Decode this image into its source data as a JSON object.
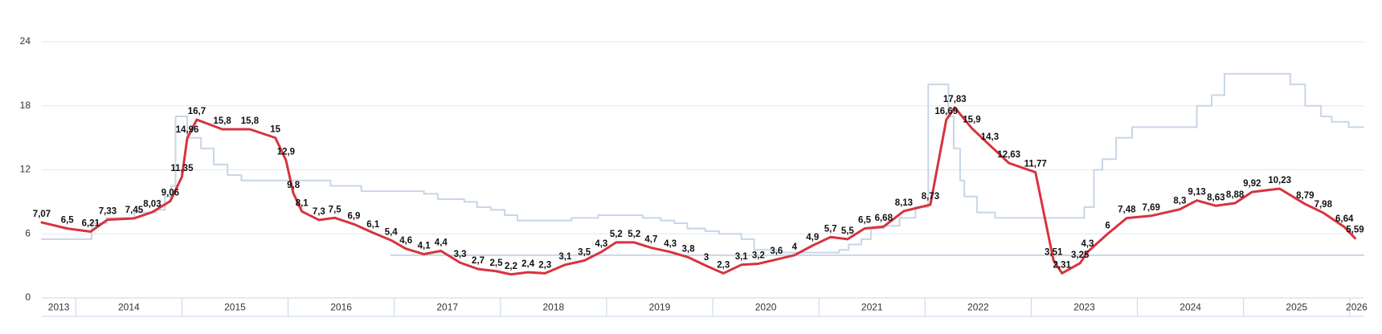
{
  "chart_data": {
    "type": "line",
    "xlim": [
      2013.68,
      2026.13
    ],
    "xticks": [
      2013,
      2014,
      2015,
      2016,
      2017,
      2018,
      2019,
      2020,
      2021,
      2022,
      2023,
      2024,
      2025,
      2026
    ],
    "ylim": [
      0,
      24
    ],
    "yticks": [
      0,
      6,
      12,
      18,
      24
    ],
    "grid": true,
    "series": [
      {
        "color": "#d7333f",
        "step": false,
        "labels": true,
        "x": [
          2013.68,
          2013.92,
          2014.14,
          2014.3,
          2014.55,
          2014.72,
          2014.89,
          2015.0,
          2015.05,
          2015.14,
          2015.38,
          2015.64,
          2015.88,
          2015.98,
          2016.05,
          2016.13,
          2016.29,
          2016.44,
          2016.62,
          2016.8,
          2016.97,
          2017.11,
          2017.28,
          2017.44,
          2017.62,
          2017.79,
          2017.96,
          2018.1,
          2018.26,
          2018.42,
          2018.61,
          2018.79,
          2018.95,
          2019.09,
          2019.26,
          2019.42,
          2019.6,
          2019.77,
          2019.94,
          2020.1,
          2020.27,
          2020.43,
          2020.6,
          2020.77,
          2020.94,
          2021.11,
          2021.27,
          2021.43,
          2021.61,
          2021.8,
          2022.05,
          2022.2,
          2022.28,
          2022.44,
          2022.61,
          2022.79,
          2023.04,
          2023.21,
          2023.29,
          2023.46,
          2023.53,
          2023.72,
          2023.9,
          2024.13,
          2024.4,
          2024.56,
          2024.74,
          2024.92,
          2025.08,
          2025.34,
          2025.58,
          2025.75,
          2025.95,
          2026.05
        ],
        "values": [
          7.07,
          6.5,
          6.21,
          7.33,
          7.45,
          8.03,
          9.06,
          11.35,
          14.96,
          16.7,
          15.8,
          15.8,
          15,
          12.9,
          9.8,
          8.1,
          7.3,
          7.5,
          6.9,
          6.1,
          5.4,
          4.6,
          4.1,
          4.4,
          3.3,
          2.7,
          2.5,
          2.2,
          2.4,
          2.3,
          3.1,
          3.5,
          4.3,
          5.2,
          5.2,
          4.7,
          4.3,
          3.8,
          3,
          2.3,
          3.1,
          3.2,
          3.6,
          4,
          4.9,
          5.7,
          5.5,
          6.5,
          6.68,
          8.13,
          8.73,
          16.69,
          17.83,
          15.9,
          14.3,
          12.63,
          11.77,
          3.51,
          2.31,
          3.25,
          4.3,
          6,
          7.48,
          7.69,
          8.3,
          9.13,
          8.63,
          8.88,
          9.92,
          10.23,
          8.79,
          7.98,
          6.64,
          5.59
        ],
        "value_labels": [
          "7,07",
          "6,5",
          "6,21",
          "7,33",
          "7,45",
          "8,03",
          "9,06",
          "11,35",
          "14,96",
          "16,7",
          "15,8",
          "15,8",
          "15",
          "12,9",
          "9,8",
          "8,1",
          "7,3",
          "7,5",
          "6,9",
          "6,1",
          "5,4",
          "4,6",
          "4,1",
          "4,4",
          "3,3",
          "2,7",
          "2,5",
          "2,2",
          "2,4",
          "2,3",
          "3,1",
          "3,5",
          "4,3",
          "5,2",
          "5,2",
          "4,7",
          "4,3",
          "3,8",
          "3",
          "2,3",
          "3,1",
          "3,2",
          "3,6",
          "4",
          "4,9",
          "5,7",
          "5,5",
          "6,5",
          "6,68",
          "8,13",
          "8,73",
          "16,69",
          "17,83",
          "15,9",
          "14,3",
          "12,63",
          "11,77",
          "3,51",
          "2,31",
          "3,25",
          "4,3",
          "6",
          "7,48",
          "7,69",
          "8,3",
          "9,13",
          "8,63",
          "8,88",
          "9,92",
          "10,23",
          "8,79",
          "7,98",
          "6,64",
          "5,59"
        ]
      },
      {
        "color": "#c8d5e8",
        "step": true,
        "labels": false,
        "x": [
          2013.68,
          2014.15,
          2014.29,
          2014.55,
          2014.76,
          2014.84,
          2014.9,
          2014.94,
          2015.05,
          2015.18,
          2015.3,
          2015.43,
          2015.56,
          2016.4,
          2016.69,
          2017.28,
          2017.41,
          2017.66,
          2017.78,
          2017.91,
          2018.04,
          2018.16,
          2018.67,
          2018.92,
          2019.34,
          2019.51,
          2019.64,
          2019.76,
          2019.93,
          2020.06,
          2020.27,
          2020.39,
          2020.6,
          2021.19,
          2021.28,
          2021.4,
          2021.49,
          2021.61,
          2021.76,
          2021.91,
          2022.03,
          2022.22,
          2022.27,
          2022.33,
          2022.37,
          2022.49,
          2022.66,
          2023.5,
          2023.59,
          2023.67,
          2023.8,
          2023.95,
          2024.56,
          2024.7,
          2024.82,
          2025.44,
          2025.58,
          2025.73,
          2025.83,
          2025.99,
          2026.13
        ],
        "values": [
          5.5,
          7,
          7.5,
          8,
          8.25,
          9.5,
          10.5,
          17,
          15,
          14,
          12.5,
          11.5,
          11,
          10.5,
          10,
          9.75,
          9.25,
          9,
          8.5,
          8.25,
          7.75,
          7.25,
          7.5,
          7.75,
          7.5,
          7.25,
          7,
          6.5,
          6.25,
          6,
          5.5,
          4.5,
          4.25,
          4.5,
          5,
          5.5,
          6.5,
          6.75,
          7.5,
          8.5,
          20,
          17,
          14,
          11,
          9.5,
          8,
          7.5,
          8.5,
          12,
          13,
          15,
          16,
          18,
          19,
          21,
          20,
          18,
          17,
          16.5,
          16,
          16
        ]
      },
      {
        "color": "#c8d5e8",
        "step": false,
        "labels": false,
        "x": [
          2016.97,
          2026.13
        ],
        "values": [
          4,
          4
        ]
      }
    ]
  }
}
